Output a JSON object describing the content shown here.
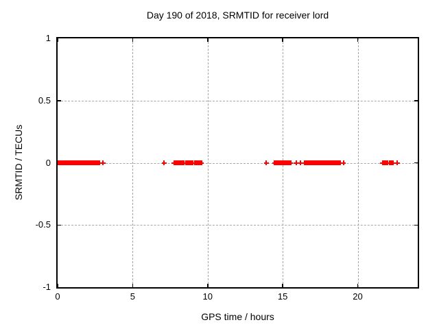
{
  "chart_data": {
    "type": "scatter",
    "title": "Day 190 of 2018, SRMTID for receiver lord",
    "xlabel": "GPS time / hours",
    "ylabel": "SRMTID / TECUs",
    "xlim": [
      0,
      24
    ],
    "ylim": [
      -1,
      1
    ],
    "xticks": [
      0,
      5,
      10,
      15,
      20
    ],
    "yticks": [
      1,
      0.5,
      0,
      -0.5,
      -1
    ],
    "ytick_labels": [
      "1",
      "0.5",
      "0",
      "-0.5",
      "-1"
    ],
    "xtick_labels": [
      "0",
      "5",
      "10",
      "15",
      "20"
    ],
    "grid": true,
    "legend": "none",
    "marker": "plus",
    "marker_color": "#ff0000",
    "series": [
      {
        "name": "SRMTID",
        "y_constant": 0,
        "segments": [
          {
            "kind": "band",
            "x_start": 0.03,
            "x_end": 2.8,
            "y": 0
          },
          {
            "kind": "point",
            "x": 3.03,
            "y": 0
          },
          {
            "kind": "point",
            "x": 7.1,
            "y": 0
          },
          {
            "kind": "band",
            "x_start": 7.75,
            "x_end": 8.4,
            "y": 0
          },
          {
            "kind": "band",
            "x_start": 8.55,
            "x_end": 9.0,
            "y": 0
          },
          {
            "kind": "band",
            "x_start": 9.15,
            "x_end": 9.62,
            "y": 0
          },
          {
            "kind": "point",
            "x": 13.9,
            "y": 0
          },
          {
            "kind": "band",
            "x_start": 14.45,
            "x_end": 15.05,
            "y": 0
          },
          {
            "kind": "band",
            "x_start": 15.12,
            "x_end": 15.55,
            "y": 0
          },
          {
            "kind": "point",
            "x": 15.9,
            "y": 0
          },
          {
            "kind": "point",
            "x": 16.2,
            "y": 0
          },
          {
            "kind": "band",
            "x_start": 16.45,
            "x_end": 18.85,
            "y": 0
          },
          {
            "kind": "point",
            "x": 19.05,
            "y": 0
          },
          {
            "kind": "band",
            "x_start": 21.65,
            "x_end": 21.98,
            "y": 0
          },
          {
            "kind": "band",
            "x_start": 22.12,
            "x_end": 22.38,
            "y": 0
          },
          {
            "kind": "point",
            "x": 22.65,
            "y": 0
          }
        ]
      }
    ]
  },
  "colors": {
    "marker": "#ff0000",
    "grid": "#a6a6a6",
    "border": "#000000",
    "background": "#ffffff",
    "text": "#000000"
  }
}
